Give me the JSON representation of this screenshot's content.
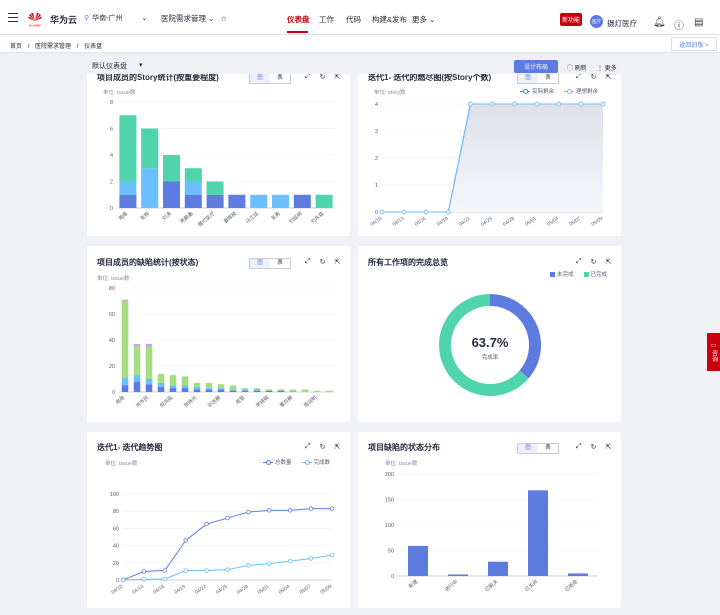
{
  "header": {
    "brand": "华为云",
    "logo_text": "HUAWEI",
    "region": "华南-广州",
    "project": "医院需求管理",
    "nav": [
      "仪表盘",
      "工作",
      "代码",
      "构建&发布",
      "更多"
    ],
    "new_badge": "新功能",
    "avatar_text": "医疗",
    "username": "摄灯医疗"
  },
  "breadcrumb": {
    "items": [
      "首页",
      "医院需求管理",
      "仪表盘"
    ],
    "sep": "/",
    "back": "返回旧版 >"
  },
  "toolbar": {
    "dashboard": "默认仪表盘",
    "design": "设计布局",
    "refresh": "刷新",
    "more": "更多"
  },
  "toggle": {
    "chart": "图",
    "table": "表"
  },
  "side_tab": "咨询",
  "cards": {
    "c1": {
      "title": "项目成员的Story统计(按重要程度)",
      "unit": "单位: issue数"
    },
    "c2": {
      "title": "迭代1- 迭代的燃尽图(按Story个数)",
      "unit": "单位: story数",
      "legend": [
        "实际剩余",
        "理想剩余"
      ]
    },
    "c3": {
      "title": "项目成员的缺陷统计(按状态)",
      "unit": "单位: issue数"
    },
    "c4": {
      "title": "所有工作项的完成总览",
      "legend": [
        "未完成",
        "已完成"
      ],
      "percent": "63.7%",
      "caption": "完成率"
    },
    "c5": {
      "title": "迭代1- 迭代趋势图",
      "unit": "单位: issue数",
      "legend": [
        "总数量",
        "完成数"
      ]
    },
    "c6": {
      "title": "项目缺陷的状态分布",
      "unit": "单位: issue数"
    }
  },
  "colors": {
    "blue": "#5e7ce0",
    "green": "#50d4ab",
    "lightblue": "#6cbfff",
    "red": "#c7000b",
    "lime": "#a6dd82"
  },
  "chart_data": [
    {
      "type": "bar",
      "stacked": true,
      "ylim": [
        0,
        8
      ],
      "yticks": [
        0,
        2,
        4,
        6,
        8
      ],
      "categories": [
        "周峰",
        "张辉",
        "刘涛",
        "亮鹏鑫",
        "摄灯医疗",
        "春晖楼",
        "马兰廷",
        "张勇",
        "刘延炳",
        "刘永森"
      ],
      "series": [
        {
          "color": "#5e7ce0",
          "values": [
            1,
            0,
            2,
            1,
            1,
            1,
            0,
            0,
            1,
            0
          ]
        },
        {
          "color": "#6cbfff",
          "values": [
            1,
            3,
            0,
            1,
            0,
            0,
            1,
            1,
            0,
            0
          ]
        },
        {
          "color": "#50d4ab",
          "values": [
            5,
            3,
            2,
            1,
            1,
            0,
            0,
            0,
            0,
            1
          ]
        }
      ]
    },
    {
      "type": "line",
      "ylim": [
        0,
        4
      ],
      "yticks": [
        0,
        1,
        2,
        3,
        4
      ],
      "x": [
        "04/10",
        "04/13",
        "04/16",
        "04/19",
        "04/22",
        "04/25",
        "04/28",
        "05/01",
        "05/04",
        "05/07",
        "05/09"
      ],
      "series": [
        {
          "name": "实际剩余",
          "values": [
            0,
            0,
            0,
            0,
            4,
            4,
            4,
            4,
            4,
            4,
            4
          ]
        },
        {
          "name": "理想剩余",
          "values": [
            0,
            0,
            0,
            0,
            4,
            4,
            4,
            4,
            4,
            4,
            4
          ]
        }
      ]
    },
    {
      "type": "bar",
      "stacked": true,
      "ylim": [
        0,
        80
      ],
      "yticks": [
        0,
        20,
        40,
        60,
        80
      ],
      "categories": [
        "周峰",
        "",
        "肖市民",
        "",
        "倪凤庭",
        "",
        "张晓光",
        "",
        "孙志鹏",
        "",
        "周慧",
        "",
        "李婧娴",
        "",
        "覃月鹏",
        "",
        "周润明",
        ""
      ],
      "labels_shown": [
        "周峰",
        "肖市民",
        "倪凤庭",
        "张晓光",
        "孙志鹏",
        "周慧",
        "李婧娴",
        "覃月鹏",
        "周润明"
      ],
      "series": [
        {
          "color": "#5e7ce0",
          "values": [
            5,
            8,
            6,
            4,
            3,
            3,
            2,
            2,
            2,
            1,
            1,
            1,
            1,
            1,
            0,
            0,
            0,
            0
          ]
        },
        {
          "color": "#6cbfff",
          "values": [
            6,
            5,
            4,
            3,
            2,
            2,
            2,
            1,
            1,
            1,
            1,
            1,
            0,
            0,
            1,
            0,
            0,
            0
          ]
        },
        {
          "color": "#a6dd82",
          "values": [
            59,
            22,
            25,
            7,
            8,
            7,
            3,
            4,
            3,
            3,
            1,
            1,
            1,
            1,
            1,
            2,
            1,
            1
          ]
        },
        {
          "color": "#c7a8e8",
          "values": [
            1,
            2,
            2,
            0,
            0,
            0,
            0,
            0,
            0,
            0,
            0,
            0,
            0,
            0,
            0,
            0,
            0,
            0
          ]
        }
      ]
    },
    {
      "type": "pie",
      "categories": [
        "未完成",
        "已完成"
      ],
      "values": [
        36.3,
        63.7
      ],
      "colors": [
        "#5e7ce0",
        "#50d4ab"
      ]
    },
    {
      "type": "line",
      "ylim": [
        0,
        100
      ],
      "yticks": [
        0,
        20,
        40,
        60,
        80,
        100
      ],
      "x": [
        "04/10",
        "04/13",
        "04/16",
        "04/19",
        "04/22",
        "04/25",
        "04/28",
        "05/01",
        "05/04",
        "05/07",
        "05/09"
      ],
      "series": [
        {
          "name": "总数量",
          "color": "#5e7ce0",
          "values": [
            0,
            10,
            11,
            46,
            65,
            72,
            79,
            81,
            81,
            83,
            83
          ]
        },
        {
          "name": "完成数",
          "color": "#6cbfff",
          "values": [
            0,
            1,
            1,
            11,
            11,
            12,
            17,
            19,
            22,
            25,
            29
          ]
        }
      ]
    },
    {
      "type": "bar",
      "ylim": [
        0,
        200
      ],
      "yticks": [
        0,
        50,
        100,
        150,
        200
      ],
      "categories": [
        "新建",
        "进行中",
        "已解决",
        "已关闭",
        "已拒绝"
      ],
      "values": [
        59,
        3,
        28,
        168,
        5
      ],
      "color": "#5e7ce0"
    }
  ]
}
